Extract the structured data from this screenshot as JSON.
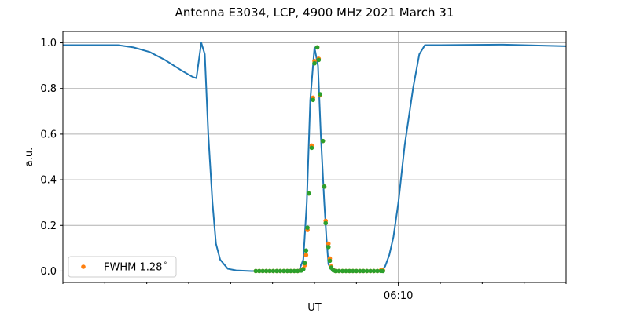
{
  "chart_data": {
    "type": "line",
    "title": "Antenna E3034, LCP, 4900 MHz 2021 March 31",
    "xlabel": "UT",
    "ylabel": "a.u.",
    "xlim": [
      "06:02:00",
      "06:14:00"
    ],
    "ylim": [
      -0.05,
      1.05
    ],
    "x_major_ticks": [
      {
        "t": "06:10:00",
        "label": "06:10"
      }
    ],
    "x_minor_ticks_minutes": 1,
    "y_ticks": [
      0.0,
      0.2,
      0.4,
      0.6,
      0.8,
      1.0
    ],
    "y_tick_labels": [
      "0.0",
      "0.2",
      "0.4",
      "0.6",
      "0.8",
      "1.0"
    ],
    "grid": true,
    "legend": {
      "placement": "lower-left",
      "entries": [
        "FWHM 1.28$^\\circ$"
      ],
      "label_text": "FWHM 1.28",
      "label_sup": "°"
    },
    "series": [
      {
        "kind": "line",
        "color": "#1f77b4",
        "x": [
          "06:02:00",
          "06:03:19",
          "06:03:41",
          "06:04:04",
          "06:04:26",
          "06:04:49",
          "06:05:06",
          "06:05:11",
          "06:05:18",
          "06:05:23",
          "06:05:28",
          "06:05:34",
          "06:05:39",
          "06:05:45",
          "06:05:56",
          "06:06:08",
          "06:06:30",
          "06:07:38",
          "06:07:44",
          "06:07:49",
          "06:07:54",
          "06:08:00",
          "06:08:05",
          "06:08:09",
          "06:08:14",
          "06:08:17",
          "06:08:20",
          "06:08:25",
          "06:08:34",
          "06:09:36",
          "06:09:41",
          "06:09:47",
          "06:09:53",
          "06:10:00",
          "06:10:09",
          "06:10:21",
          "06:10:30",
          "06:10:38",
          "06:11:00",
          "06:12:30",
          "06:14:00"
        ],
        "y": [
          0.99,
          0.99,
          0.98,
          0.96,
          0.925,
          0.88,
          0.85,
          0.845,
          1.0,
          0.95,
          0.6,
          0.3,
          0.12,
          0.05,
          0.01,
          0.003,
          0.0,
          0.003,
          0.05,
          0.3,
          0.75,
          0.98,
          0.9,
          0.6,
          0.3,
          0.15,
          0.03,
          0.002,
          0.002,
          0.002,
          0.02,
          0.07,
          0.15,
          0.3,
          0.55,
          0.8,
          0.95,
          0.99,
          0.99,
          0.992,
          0.985
        ]
      },
      {
        "kind": "scatter",
        "name": "FWHM 1.28°",
        "color": "#ff7f0e",
        "x": [
          "06:06:36",
          "06:06:41",
          "06:06:46",
          "06:06:51",
          "06:06:56",
          "06:07:01",
          "06:07:06",
          "06:07:11",
          "06:07:16",
          "06:07:21",
          "06:07:26",
          "06:07:31",
          "06:07:36",
          "06:07:41",
          "06:07:44",
          "06:07:46",
          "06:07:48",
          "06:07:50",
          "06:07:52",
          "06:07:56",
          "06:07:58",
          "06:08:00",
          "06:08:04",
          "06:08:06",
          "06:08:08",
          "06:08:12",
          "06:08:14",
          "06:08:16",
          "06:08:20",
          "06:08:22",
          "06:08:24",
          "06:08:27",
          "06:08:30",
          "06:08:35",
          "06:08:40",
          "06:08:45",
          "06:08:50",
          "06:08:55",
          "06:09:00",
          "06:09:05",
          "06:09:10",
          "06:09:15",
          "06:09:20",
          "06:09:25",
          "06:09:30",
          "06:09:35",
          "06:09:38"
        ],
        "y": [
          0,
          0,
          0,
          0,
          0,
          0,
          0,
          0,
          0,
          0,
          0,
          0,
          0,
          0.005,
          0.01,
          0.025,
          0.07,
          0.18,
          0.34,
          0.55,
          0.76,
          0.92,
          0.98,
          0.93,
          0.77,
          0.57,
          0.37,
          0.22,
          0.12,
          0.055,
          0.02,
          0.005,
          0,
          0,
          0,
          0,
          0,
          0,
          0,
          0,
          0,
          0,
          0,
          0,
          0,
          0.003,
          0.003
        ]
      },
      {
        "kind": "scatter",
        "color": "#2ca02c",
        "x": [
          "06:06:36",
          "06:06:41",
          "06:06:46",
          "06:06:51",
          "06:06:56",
          "06:07:01",
          "06:07:06",
          "06:07:11",
          "06:07:16",
          "06:07:21",
          "06:07:26",
          "06:07:31",
          "06:07:36",
          "06:07:41",
          "06:07:44",
          "06:07:46",
          "06:07:48",
          "06:07:50",
          "06:07:52",
          "06:07:56",
          "06:07:58",
          "06:08:00",
          "06:08:04",
          "06:08:06",
          "06:08:08",
          "06:08:12",
          "06:08:14",
          "06:08:16",
          "06:08:20",
          "06:08:22",
          "06:08:24",
          "06:08:27",
          "06:08:30",
          "06:08:35",
          "06:08:40",
          "06:08:45",
          "06:08:50",
          "06:08:55",
          "06:09:00",
          "06:09:05",
          "06:09:10",
          "06:09:15",
          "06:09:20",
          "06:09:25",
          "06:09:30",
          "06:09:35",
          "06:09:38"
        ],
        "y": [
          0,
          0,
          0,
          0,
          0,
          0,
          0,
          0,
          0,
          0,
          0,
          0,
          0,
          0.002,
          0.008,
          0.035,
          0.09,
          0.19,
          0.34,
          0.54,
          0.75,
          0.91,
          0.98,
          0.925,
          0.775,
          0.57,
          0.37,
          0.21,
          0.105,
          0.045,
          0.015,
          0.003,
          0,
          0,
          0,
          0,
          0,
          0,
          0,
          0,
          0,
          0,
          0,
          0,
          0,
          0,
          0
        ]
      }
    ]
  }
}
